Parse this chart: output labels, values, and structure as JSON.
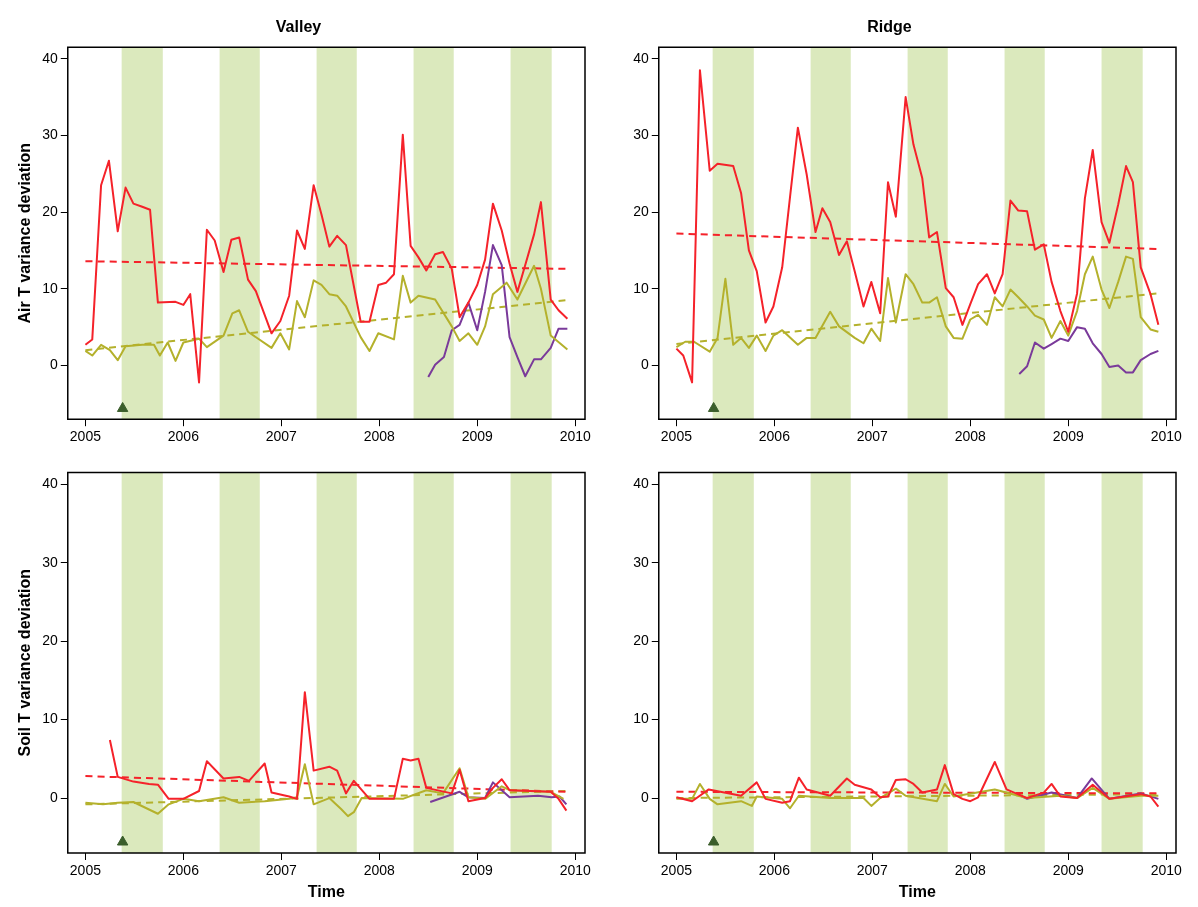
{
  "chart_data": [
    {
      "type": "line",
      "title": "Valley",
      "ylabel": "Air T variance deviation",
      "xlim": [
        2004.82,
        2010.1
      ],
      "xticks": [
        2005,
        2006,
        2007,
        2008,
        2009,
        2010
      ],
      "ylim": [
        -7,
        41.5
      ],
      "yticks": [
        0,
        10,
        20,
        30,
        40
      ],
      "bands": [
        {
          "axis": "x",
          "from": 2005.37,
          "to": 2005.79,
          "color": "#dbe9bd"
        },
        {
          "axis": "x",
          "from": 2006.37,
          "to": 2006.78,
          "color": "#dbe9bd"
        },
        {
          "axis": "x",
          "from": 2007.36,
          "to": 2007.77,
          "color": "#dbe9bd"
        },
        {
          "axis": "x",
          "from": 2008.35,
          "to": 2008.76,
          "color": "#dbe9bd"
        },
        {
          "axis": "x",
          "from": 2009.34,
          "to": 2009.76,
          "color": "#dbe9bd"
        }
      ],
      "series": [
        {
          "type": "line",
          "color": "#f5222a",
          "marker": "none",
          "x": [
            2005.0,
            2005.07,
            2005.16,
            2005.24,
            2005.33,
            2005.41,
            2005.49,
            2005.58,
            2005.66,
            2005.74,
            2005.92,
            2006.0,
            2006.07,
            2006.16,
            2006.24,
            2006.32,
            2006.41,
            2006.49,
            2006.57,
            2006.66,
            2006.74,
            2006.9,
            2006.99,
            2007.08,
            2007.16,
            2007.24,
            2007.33,
            2007.41,
            2007.49,
            2007.57,
            2007.66,
            2007.81,
            2007.9,
            2007.99,
            2008.07,
            2008.15,
            2008.24,
            2008.32,
            2008.4,
            2008.48,
            2008.57,
            2008.65,
            2008.74,
            2008.82,
            2008.91,
            2009.0,
            2009.08,
            2009.16,
            2009.25,
            2009.33,
            2009.41,
            2009.49,
            2009.58,
            2009.65,
            2009.75,
            2009.83,
            2009.92
          ],
          "values": [
            2.7,
            3.4,
            23.5,
            26.7,
            17.5,
            23.2,
            21.1,
            20.7,
            20.3,
            8.2,
            8.3,
            7.9,
            9.3,
            -2.2,
            17.7,
            16.3,
            12.2,
            16.4,
            16.7,
            11.2,
            9.7,
            4.2,
            5.8,
            9.1,
            17.6,
            15.2,
            23.5,
            19.7,
            15.5,
            16.9,
            15.7,
            5.7,
            5.7,
            10.5,
            10.8,
            11.9,
            30.1,
            15.6,
            14.1,
            12.4,
            14.5,
            14.8,
            12.6,
            6.3,
            8.2,
            10.5,
            13.8,
            21.1,
            17.6,
            13.3,
            9.6,
            13.1,
            17.1,
            21.3,
            8.6,
            7.2,
            6.1
          ]
        },
        {
          "type": "line",
          "color": "#b4b12c",
          "marker": "none",
          "x": [
            2005.0,
            2005.07,
            2005.16,
            2005.25,
            2005.33,
            2005.41,
            2005.58,
            2005.7,
            2005.76,
            2005.84,
            2005.92,
            2006.0,
            2006.16,
            2006.24,
            2006.41,
            2006.5,
            2006.57,
            2006.66,
            2006.9,
            2006.99,
            2007.08,
            2007.16,
            2007.24,
            2007.33,
            2007.41,
            2007.49,
            2007.57,
            2007.66,
            2007.81,
            2007.9,
            2007.99,
            2008.15,
            2008.24,
            2008.32,
            2008.4,
            2008.57,
            2008.74,
            2008.82,
            2008.91,
            2009.0,
            2009.08,
            2009.16,
            2009.3,
            2009.41,
            2009.58,
            2009.65,
            2009.75,
            2009.92
          ],
          "values": [
            1.9,
            1.3,
            2.7,
            2.0,
            0.7,
            2.5,
            2.7,
            2.7,
            1.3,
            3.0,
            0.6,
            3.0,
            3.5,
            2.4,
            3.9,
            6.8,
            7.2,
            4.4,
            2.3,
            4.2,
            2.1,
            8.4,
            6.3,
            11.1,
            10.5,
            9.3,
            9.1,
            7.7,
            3.7,
            1.9,
            4.2,
            3.4,
            11.7,
            8.2,
            9.1,
            8.6,
            5.1,
            3.2,
            4.2,
            2.7,
            5.1,
            9.3,
            10.8,
            8.6,
            13.0,
            10.0,
            3.9,
            2.1
          ]
        },
        {
          "type": "line",
          "color": "#7a3a9a",
          "marker": "none",
          "x": [
            2008.5,
            2008.57,
            2008.66,
            2008.74,
            2008.82,
            2008.91,
            2009.0,
            2009.08,
            2009.16,
            2009.25,
            2009.33,
            2009.41,
            2009.49,
            2009.58,
            2009.65,
            2009.75,
            2009.83,
            2009.92
          ],
          "values": [
            -1.5,
            0.1,
            1.1,
            4.6,
            5.3,
            8.2,
            4.6,
            9.6,
            15.7,
            13.1,
            3.7,
            1.1,
            -1.4,
            0.8,
            0.8,
            2.3,
            4.8,
            4.8
          ]
        },
        {
          "type": "line",
          "color": "#f5222a",
          "marker": "none",
          "line_style": "dashed",
          "x": [
            2005.0,
            2009.9
          ],
          "values": [
            13.6,
            12.6
          ]
        },
        {
          "type": "line",
          "color": "#b4b12c",
          "marker": "none",
          "line_style": "dashed",
          "x": [
            2005.0,
            2009.9
          ],
          "values": [
            2.0,
            8.5
          ]
        },
        {
          "type": "scatter",
          "color": "#3b5e2b",
          "marker": "triangle",
          "x": [
            2005.38
          ],
          "values": [
            -5.6
          ]
        }
      ]
    },
    {
      "type": "line",
      "title": "Ridge",
      "xlim": [
        2004.82,
        2010.1
      ],
      "xticks": [
        2005,
        2006,
        2007,
        2008,
        2009,
        2010
      ],
      "ylim": [
        -7,
        41.5
      ],
      "yticks": [
        0,
        10,
        20,
        30,
        40
      ],
      "bands": [
        {
          "axis": "x",
          "from": 2005.37,
          "to": 2005.79,
          "color": "#dbe9bd"
        },
        {
          "axis": "x",
          "from": 2006.37,
          "to": 2006.78,
          "color": "#dbe9bd"
        },
        {
          "axis": "x",
          "from": 2007.36,
          "to": 2007.77,
          "color": "#dbe9bd"
        },
        {
          "axis": "x",
          "from": 2008.35,
          "to": 2008.76,
          "color": "#dbe9bd"
        },
        {
          "axis": "x",
          "from": 2009.34,
          "to": 2009.76,
          "color": "#dbe9bd"
        }
      ],
      "series": [
        {
          "type": "line",
          "color": "#f5222a",
          "marker": "none",
          "x": [
            2005.0,
            2005.07,
            2005.16,
            2005.24,
            2005.34,
            2005.42,
            2005.58,
            2005.66,
            2005.74,
            2005.82,
            2005.91,
            2005.99,
            2006.08,
            2006.16,
            2006.24,
            2006.33,
            2006.42,
            2006.49,
            2006.57,
            2006.66,
            2006.74,
            2006.82,
            2006.91,
            2006.99,
            2007.08,
            2007.16,
            2007.24,
            2007.34,
            2007.42,
            2007.51,
            2007.58,
            2007.66,
            2007.75,
            2007.83,
            2007.92,
            2008.0,
            2008.08,
            2008.17,
            2008.25,
            2008.33,
            2008.41,
            2008.49,
            2008.58,
            2008.66,
            2008.75,
            2008.83,
            2008.92,
            2009.0,
            2009.09,
            2009.17,
            2009.25,
            2009.34,
            2009.42,
            2009.51,
            2009.59,
            2009.66,
            2009.74,
            2009.84,
            2009.92
          ],
          "values": [
            2.2,
            1.3,
            -2.2,
            38.5,
            25.4,
            26.3,
            26.0,
            22.5,
            15.0,
            12.3,
            5.6,
            7.7,
            12.8,
            22.0,
            31.0,
            24.9,
            17.4,
            20.5,
            18.7,
            14.4,
            16.2,
            12.3,
            7.7,
            10.9,
            6.8,
            23.9,
            19.4,
            35.0,
            28.8,
            24.4,
            16.7,
            17.4,
            10.1,
            8.9,
            5.3,
            8.0,
            10.6,
            11.9,
            9.4,
            11.9,
            21.5,
            20.2,
            20.1,
            15.1,
            15.8,
            10.9,
            7.1,
            4.4,
            9.4,
            21.8,
            28.1,
            18.7,
            16.0,
            21.0,
            26.0,
            23.9,
            12.8,
            9.3,
            5.3
          ]
        },
        {
          "type": "line",
          "color": "#b4b12c",
          "marker": "none",
          "x": [
            2005.0,
            2005.09,
            2005.18,
            2005.34,
            2005.42,
            2005.5,
            2005.58,
            2005.66,
            2005.74,
            2005.82,
            2005.91,
            2005.99,
            2006.08,
            2006.24,
            2006.33,
            2006.42,
            2006.57,
            2006.66,
            2006.82,
            2006.91,
            2006.99,
            2007.08,
            2007.16,
            2007.24,
            2007.34,
            2007.42,
            2007.51,
            2007.58,
            2007.66,
            2007.75,
            2007.83,
            2007.92,
            2008.0,
            2008.08,
            2008.17,
            2008.25,
            2008.33,
            2008.41,
            2008.49,
            2008.58,
            2008.66,
            2008.75,
            2008.83,
            2008.92,
            2009.0,
            2009.09,
            2009.17,
            2009.25,
            2009.34,
            2009.42,
            2009.51,
            2009.59,
            2009.66,
            2009.74,
            2009.84,
            2009.92
          ],
          "values": [
            2.4,
            3.1,
            3.1,
            1.8,
            3.6,
            11.3,
            2.7,
            3.6,
            2.3,
            3.9,
            1.9,
            3.9,
            4.6,
            2.7,
            3.6,
            3.6,
            7.0,
            5.1,
            3.6,
            2.9,
            4.8,
            3.2,
            11.4,
            5.6,
            11.9,
            10.6,
            8.2,
            8.2,
            8.9,
            5.1,
            3.6,
            3.5,
            6.0,
            6.6,
            5.3,
            8.9,
            7.7,
            9.9,
            8.9,
            7.7,
            6.5,
            6.0,
            3.6,
            5.8,
            3.9,
            7.1,
            11.9,
            14.2,
            9.9,
            7.5,
            10.9,
            14.2,
            13.9,
            6.3,
            4.7,
            4.4
          ]
        },
        {
          "type": "line",
          "color": "#7a3a9a",
          "marker": "none",
          "x": [
            2008.5,
            2008.58,
            2008.66,
            2008.75,
            2008.83,
            2008.92,
            2009.0,
            2009.09,
            2009.17,
            2009.25,
            2009.34,
            2009.42,
            2009.51,
            2009.59,
            2009.66,
            2009.74,
            2009.84,
            2009.92
          ],
          "values": [
            -1.1,
            -0.1,
            3.0,
            2.2,
            2.8,
            3.5,
            3.2,
            5.0,
            4.8,
            2.9,
            1.5,
            -0.2,
            0.0,
            -0.9,
            -0.9,
            0.7,
            1.5,
            1.9
          ]
        },
        {
          "type": "line",
          "color": "#f5222a",
          "marker": "none",
          "line_style": "dashed",
          "x": [
            2005.0,
            2009.9
          ],
          "values": [
            17.2,
            15.2
          ]
        },
        {
          "type": "line",
          "color": "#b4b12c",
          "marker": "none",
          "line_style": "dashed",
          "x": [
            2005.0,
            2009.9
          ],
          "values": [
            2.8,
            9.4
          ]
        },
        {
          "type": "scatter",
          "color": "#3b5e2b",
          "marker": "triangle",
          "x": [
            2005.38
          ],
          "values": [
            -5.6
          ]
        }
      ]
    },
    {
      "type": "line",
      "xlabel": "Time",
      "ylabel": "Soil T variance deviation",
      "xlim": [
        2004.82,
        2010.1
      ],
      "xticks": [
        2005,
        2006,
        2007,
        2008,
        2009,
        2010
      ],
      "ylim": [
        -7,
        41.5
      ],
      "yticks": [
        0,
        10,
        20,
        30,
        40
      ],
      "bands": [
        {
          "axis": "x",
          "from": 2005.37,
          "to": 2005.79,
          "color": "#dbe9bd"
        },
        {
          "axis": "x",
          "from": 2006.37,
          "to": 2006.78,
          "color": "#dbe9bd"
        },
        {
          "axis": "x",
          "from": 2007.36,
          "to": 2007.77,
          "color": "#dbe9bd"
        },
        {
          "axis": "x",
          "from": 2008.35,
          "to": 2008.76,
          "color": "#dbe9bd"
        },
        {
          "axis": "x",
          "from": 2009.34,
          "to": 2009.76,
          "color": "#dbe9bd"
        }
      ],
      "series": [
        {
          "type": "line",
          "color": "#f5222a",
          "marker": "none",
          "x": [
            2005.25,
            2005.33,
            2005.49,
            2005.65,
            2005.74,
            2005.85,
            2006.0,
            2006.16,
            2006.24,
            2006.41,
            2006.57,
            2006.67,
            2006.83,
            2006.9,
            2007.08,
            2007.16,
            2007.24,
            2007.33,
            2007.49,
            2007.57,
            2007.66,
            2007.74,
            2007.9,
            2008.15,
            2008.24,
            2008.32,
            2008.4,
            2008.48,
            2008.74,
            2008.82,
            2008.91,
            2009.08,
            2009.16,
            2009.25,
            2009.33,
            2009.75,
            2009.83,
            2009.91
          ],
          "values": [
            7.4,
            2.7,
            2.1,
            1.8,
            1.7,
            -0.1,
            -0.1,
            0.9,
            4.7,
            2.5,
            2.7,
            2.2,
            4.4,
            0.7,
            0.2,
            -0.1,
            13.5,
            3.5,
            4.0,
            3.5,
            0.6,
            2.2,
            -0.1,
            -0.1,
            5.0,
            4.8,
            5.0,
            1.3,
            0.6,
            3.6,
            -0.4,
            0.0,
            1.3,
            2.4,
            1.0,
            0.8,
            -0.1,
            -1.6
          ]
        },
        {
          "type": "line",
          "color": "#b4b12c",
          "marker": "none",
          "x": [
            2005.0,
            2005.18,
            2005.33,
            2005.49,
            2005.74,
            2005.85,
            2006.0,
            2006.16,
            2006.41,
            2006.57,
            2006.83,
            2007.08,
            2007.16,
            2007.24,
            2007.33,
            2007.49,
            2007.61,
            2007.68,
            2007.74,
            2007.82,
            2008.24,
            2008.48,
            2008.65,
            2008.82,
            2008.91,
            2009.08,
            2009.25,
            2009.33,
            2009.75,
            2009.88
          ],
          "values": [
            -0.6,
            -0.8,
            -0.6,
            -0.5,
            -2.0,
            -0.8,
            -0.1,
            -0.4,
            0.1,
            -0.6,
            -0.4,
            -0.1,
            0.1,
            4.3,
            -0.8,
            0.0,
            -1.4,
            -2.3,
            -1.8,
            0.0,
            -0.1,
            1.0,
            0.6,
            3.8,
            0.1,
            -0.1,
            1.5,
            1.0,
            0.8,
            -0.1
          ]
        },
        {
          "type": "line",
          "color": "#7a3a9a",
          "marker": "none",
          "x": [
            2008.52,
            2008.82,
            2008.91,
            2009.08,
            2009.16,
            2009.33,
            2009.62,
            2009.76,
            2009.84,
            2009.91
          ],
          "values": [
            -0.5,
            0.8,
            0.1,
            0.0,
            2.0,
            0.1,
            0.3,
            0.1,
            0.2,
            -0.8
          ]
        },
        {
          "type": "line",
          "color": "#f5222a",
          "marker": "none",
          "line_style": "dashed",
          "x": [
            2005.0,
            2009.9
          ],
          "values": [
            2.8,
            0.8
          ]
        },
        {
          "type": "line",
          "color": "#b4b12c",
          "marker": "none",
          "line_style": "dashed",
          "x": [
            2005.0,
            2009.9
          ],
          "values": [
            -0.8,
            0.9
          ]
        },
        {
          "type": "scatter",
          "color": "#3b5e2b",
          "marker": "triangle",
          "x": [
            2005.38
          ],
          "values": [
            -5.6
          ]
        }
      ]
    },
    {
      "type": "line",
      "xlabel": "Time",
      "xlim": [
        2004.82,
        2010.1
      ],
      "xticks": [
        2005,
        2006,
        2007,
        2008,
        2009,
        2010
      ],
      "ylim": [
        -7,
        41.5
      ],
      "yticks": [
        0,
        10,
        20,
        30,
        40
      ],
      "bands": [
        {
          "axis": "x",
          "from": 2005.37,
          "to": 2005.79,
          "color": "#dbe9bd"
        },
        {
          "axis": "x",
          "from": 2006.37,
          "to": 2006.78,
          "color": "#dbe9bd"
        },
        {
          "axis": "x",
          "from": 2007.36,
          "to": 2007.77,
          "color": "#dbe9bd"
        },
        {
          "axis": "x",
          "from": 2008.35,
          "to": 2008.76,
          "color": "#dbe9bd"
        },
        {
          "axis": "x",
          "from": 2009.34,
          "to": 2009.76,
          "color": "#dbe9bd"
        }
      ],
      "series": [
        {
          "type": "line",
          "color": "#f5222a",
          "marker": "none",
          "x": [
            2005.0,
            2005.16,
            2005.33,
            2005.66,
            2005.82,
            2005.91,
            2006.08,
            2006.16,
            2006.25,
            2006.33,
            2006.57,
            2006.74,
            2006.82,
            2006.99,
            2007.08,
            2007.16,
            2007.24,
            2007.34,
            2007.42,
            2007.51,
            2007.66,
            2007.74,
            2007.83,
            2007.92,
            2008.0,
            2008.08,
            2008.25,
            2008.37,
            2008.58,
            2008.75,
            2008.83,
            2008.92,
            2009.09,
            2009.25,
            2009.42,
            2009.74,
            2009.84,
            2009.92
          ],
          "values": [
            0.1,
            -0.4,
            1.1,
            0.3,
            2.0,
            -0.1,
            -0.6,
            -0.4,
            2.6,
            1.1,
            0.3,
            2.5,
            1.7,
            1.1,
            0.1,
            0.2,
            2.3,
            2.4,
            1.8,
            0.7,
            1.1,
            4.2,
            0.5,
            -0.1,
            -0.4,
            0.1,
            4.6,
            1.1,
            0.0,
            0.7,
            1.8,
            0.2,
            0.0,
            1.7,
            -0.1,
            0.5,
            0.2,
            -1.1
          ]
        },
        {
          "type": "line",
          "color": "#b4b12c",
          "marker": "none",
          "x": [
            2005.0,
            2005.16,
            2005.24,
            2005.34,
            2005.42,
            2005.66,
            2005.77,
            2005.82,
            2006.08,
            2006.16,
            2006.25,
            2006.57,
            2006.91,
            2006.99,
            2007.08,
            2007.24,
            2007.34,
            2007.66,
            2007.74,
            2007.83,
            2008.25,
            2008.58,
            2008.92,
            2009.09,
            2009.25,
            2009.42,
            2009.74,
            2009.92
          ],
          "values": [
            -0.1,
            -0.1,
            1.8,
            -0.1,
            -0.8,
            -0.4,
            -1.0,
            0.2,
            -0.1,
            -1.3,
            0.3,
            0.0,
            0.0,
            -1.0,
            0.0,
            1.2,
            0.3,
            -0.4,
            1.8,
            0.2,
            1.1,
            0.0,
            0.3,
            0.0,
            1.3,
            -0.1,
            0.3,
            0.3
          ]
        },
        {
          "type": "line",
          "color": "#7a3a9a",
          "marker": "none",
          "x": [
            2008.51,
            2008.58,
            2008.83,
            2009.09,
            2009.24,
            2009.42,
            2009.74,
            2009.92
          ],
          "values": [
            0.3,
            -0.1,
            0.7,
            0.0,
            2.5,
            -0.1,
            0.6,
            -0.1
          ]
        },
        {
          "type": "line",
          "color": "#f5222a",
          "marker": "none",
          "line_style": "dashed",
          "x": [
            2005.0,
            2009.9
          ],
          "values": [
            0.8,
            0.6
          ]
        },
        {
          "type": "line",
          "color": "#b4b12c",
          "marker": "none",
          "line_style": "dashed",
          "x": [
            2005.0,
            2009.9
          ],
          "values": [
            0.0,
            0.5
          ]
        },
        {
          "type": "scatter",
          "color": "#3b5e2b",
          "marker": "triangle",
          "x": [
            2005.38
          ],
          "values": [
            -5.6
          ]
        }
      ]
    }
  ]
}
